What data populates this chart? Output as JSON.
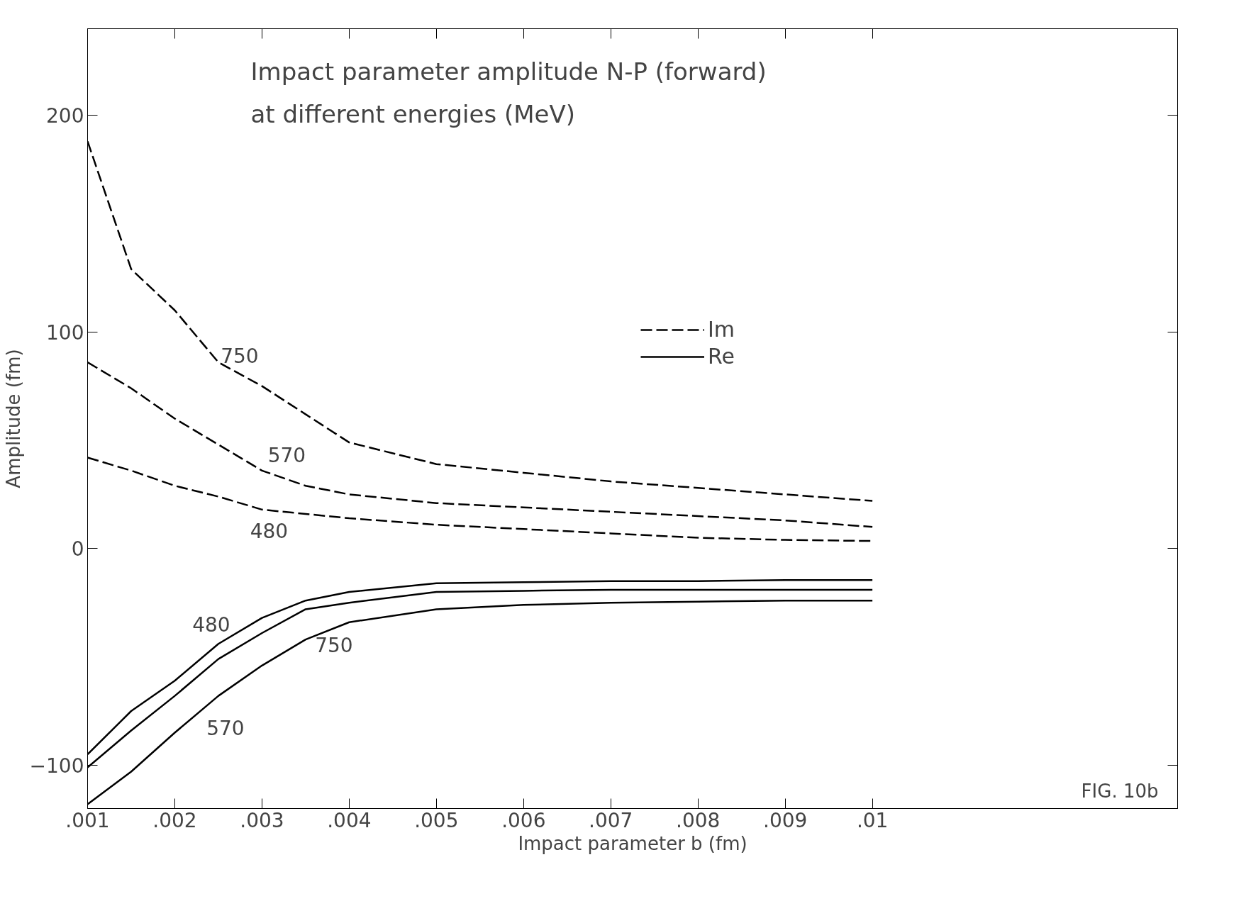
{
  "chart_data": {
    "type": "line",
    "title": "Impact parameter amplitude N-P (forward)",
    "subtitle": "at different energies (MeV)",
    "xlabel": "Impact parameter b (fm)",
    "ylabel": "Amplitude (fm)",
    "x": [
      0.001,
      0.0015,
      0.002,
      0.0025,
      0.003,
      0.0035,
      0.004,
      0.005,
      0.006,
      0.007,
      0.008,
      0.009,
      0.01
    ],
    "series": [
      {
        "name": "Im",
        "color": "#000000",
        "line_style": "dashed",
        "values": [
          188,
          129,
          110,
          86,
          75,
          62,
          49,
          39,
          35,
          31,
          28,
          25,
          22
        ]
      },
      {
        "color": "#000000",
        "line_style": "dashed",
        "values": [
          86,
          74,
          60,
          48,
          36,
          29,
          25,
          21,
          19,
          17,
          15,
          13,
          10
        ]
      },
      {
        "color": "#000000",
        "line_style": "dashed",
        "values": [
          42,
          36,
          29,
          24,
          18,
          16,
          14,
          11,
          9,
          7,
          5,
          4,
          3.5
        ]
      },
      {
        "name": "Re",
        "color": "#000000",
        "line_style": "solid",
        "values": [
          -95,
          -75,
          -61,
          -44,
          -32,
          -24,
          -20,
          -16,
          -15.5,
          -15,
          -15,
          -14.5,
          -14.5
        ]
      },
      {
        "color": "#000000",
        "line_style": "solid",
        "values": [
          -101,
          -84,
          -68,
          -51,
          -39,
          -28,
          -25,
          -20,
          -19.5,
          -19,
          -19,
          -19,
          -19
        ]
      },
      {
        "color": "#000000",
        "line_style": "solid",
        "values": [
          -118,
          -103,
          -85,
          -68,
          -54,
          -42,
          -34,
          -28,
          -26,
          -25,
          -24.5,
          -24,
          -24
        ]
      }
    ],
    "xlim": [
      0.001,
      0.0135
    ],
    "ylim": [
      -120,
      240
    ],
    "xticks": [
      {
        "value": 0.001,
        "label": ".001"
      },
      {
        "value": 0.002,
        "label": ".002"
      },
      {
        "value": 0.003,
        "label": ".003"
      },
      {
        "value": 0.004,
        "label": ".004"
      },
      {
        "value": 0.005,
        "label": ".005"
      },
      {
        "value": 0.006,
        "label": ".006"
      },
      {
        "value": 0.007,
        "label": ".007"
      },
      {
        "value": 0.008,
        "label": ".008"
      },
      {
        "value": 0.009,
        "label": ".009"
      },
      {
        "value": 0.01,
        "label": ".01"
      }
    ],
    "yticks": [
      -100,
      0,
      100,
      200
    ],
    "grid": false,
    "legend": "top right",
    "marker": "none",
    "annotations": [
      {
        "text": "750",
        "x": 0.0025,
        "y": 86
      },
      {
        "text": "570",
        "x": 0.003,
        "y": 36
      },
      {
        "text": "480",
        "x": 0.003,
        "y": 18
      },
      {
        "text": "480",
        "x": 0.0025,
        "y": -44
      },
      {
        "text": "750",
        "x": 0.0035,
        "y": -28
      },
      {
        "text": "570",
        "x": 0.0025,
        "y": -68
      },
      "FIG. 10b"
    ]
  }
}
